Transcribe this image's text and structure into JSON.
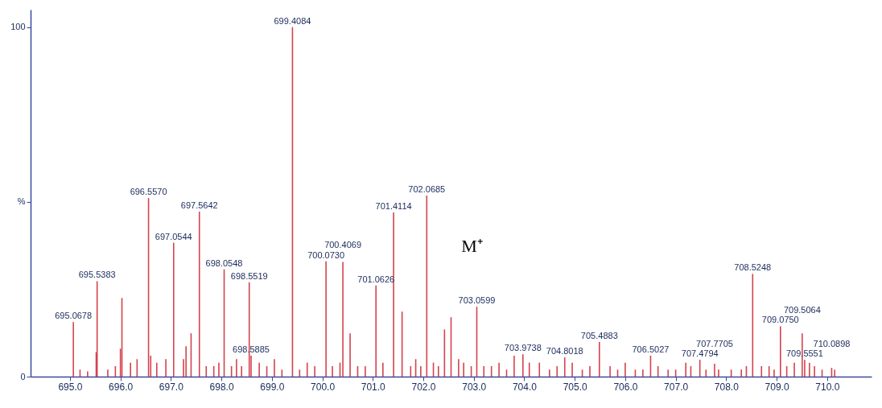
{
  "chart_data": {
    "type": "bar",
    "color": "#d4434c",
    "x": [
      695.0678,
      695.2,
      695.35,
      695.52,
      695.5383,
      695.75,
      695.9,
      696.0,
      696.03,
      696.2,
      696.33,
      696.557,
      696.6,
      696.72,
      696.9,
      697.0544,
      697.25,
      697.3,
      697.4,
      697.5642,
      697.7,
      697.85,
      697.95,
      698.0548,
      698.2,
      698.3,
      698.4,
      698.5519,
      698.5885,
      698.75,
      698.9,
      699.05,
      699.2,
      699.4084,
      699.55,
      699.7,
      699.85,
      700.073,
      700.2,
      700.35,
      700.4069,
      700.55,
      700.7,
      700.85,
      701.0626,
      701.2,
      701.4114,
      701.58,
      701.75,
      701.85,
      701.95,
      702.0685,
      702.2,
      702.3,
      702.42,
      702.55,
      702.7,
      702.8,
      702.95,
      703.0599,
      703.2,
      703.35,
      703.5,
      703.65,
      703.8,
      703.9738,
      704.1,
      704.3,
      704.5,
      704.65,
      704.8018,
      704.95,
      705.15,
      705.3,
      705.4883,
      705.7,
      705.85,
      706.0,
      706.2,
      706.35,
      706.5027,
      706.65,
      706.85,
      707.0,
      707.2,
      707.3,
      707.4794,
      707.6,
      707.7705,
      707.85,
      708.1,
      708.3,
      708.4,
      708.5248,
      708.7,
      708.85,
      708.95,
      709.075,
      709.2,
      709.35,
      709.5064,
      709.5551,
      709.65,
      709.75,
      709.9,
      710.0898,
      710.15
    ],
    "values": [
      15.6,
      2,
      1.5,
      7,
      27.3,
      2,
      3,
      8,
      22.5,
      4,
      5,
      51.1,
      6,
      4,
      5,
      38.3,
      5,
      8.7,
      12.4,
      47.2,
      3,
      3,
      4,
      30.7,
      3,
      5,
      3,
      27,
      6,
      4,
      3,
      5,
      2,
      100,
      2,
      4,
      3,
      33,
      3,
      4,
      32.8,
      12.4,
      3,
      3,
      26.1,
      4,
      47,
      18.6,
      3,
      5,
      3,
      51.8,
      4,
      3,
      13.5,
      17,
      5,
      4,
      3,
      20,
      3,
      3,
      4,
      2,
      6,
      6.4,
      4,
      4,
      2,
      3,
      5.5,
      4,
      2,
      3,
      9.9,
      3,
      2,
      4,
      2,
      2,
      6,
      3,
      2,
      2,
      4,
      3,
      4.8,
      2,
      3.7,
      2,
      2,
      2,
      3,
      29.4,
      3,
      3,
      2,
      14.4,
      3,
      4,
      12.4,
      4.8,
      4,
      3,
      2,
      2.5,
      2
    ],
    "xlim": [
      694.3,
      710.8
    ],
    "xticks": [
      {
        "value": 695,
        "label": "695.0"
      },
      {
        "value": 696,
        "label": "696.0"
      },
      {
        "value": 697,
        "label": "697.0"
      },
      {
        "value": 698,
        "label": "698.0"
      },
      {
        "value": 699,
        "label": "699.0"
      },
      {
        "value": 700,
        "label": "700.0"
      },
      {
        "value": 701,
        "label": "701.0"
      },
      {
        "value": 702,
        "label": "702.0"
      },
      {
        "value": 703,
        "label": "703.0"
      },
      {
        "value": 704,
        "label": "704.0"
      },
      {
        "value": 705,
        "label": "705.0"
      },
      {
        "value": 706,
        "label": "706.0"
      },
      {
        "value": 707,
        "label": "707.0"
      },
      {
        "value": 708,
        "label": "708.0"
      },
      {
        "value": 709,
        "label": "709.0"
      },
      {
        "value": 710,
        "label": "710.0"
      }
    ],
    "ylim": [
      0,
      105
    ],
    "yticks": [
      0,
      {
        "value": 50,
        "label": "%"
      },
      100
    ],
    "annotations": [
      {
        "text": "695.0678",
        "x": 695.0678,
        "y": 15.6
      },
      {
        "text": "695.5383",
        "x": 695.5383,
        "y": 27.3
      },
      {
        "text": "696.5570",
        "x": 696.557,
        "y": 51.1
      },
      {
        "text": "697.0544",
        "x": 697.0544,
        "y": 38.3
      },
      {
        "text": "697.5642",
        "x": 697.5642,
        "y": 47.2
      },
      {
        "text": "698.0548",
        "x": 698.0548,
        "y": 30.7
      },
      {
        "text": "698.5519",
        "x": 698.5519,
        "y": 27
      },
      {
        "text": "698.5885",
        "x": 698.5885,
        "y": 6
      },
      {
        "text": "699.4084",
        "x": 699.4084,
        "y": 100
      },
      {
        "text": "700.0730",
        "x": 700.073,
        "y": 33
      },
      {
        "text": "700.4069",
        "x": 700.4069,
        "y": 32.8
      },
      {
        "text": "701.0626",
        "x": 701.0626,
        "y": 26.1
      },
      {
        "text": "701.4114",
        "x": 701.4114,
        "y": 47
      },
      {
        "text": "702.0685",
        "x": 702.0685,
        "y": 51.8
      },
      {
        "text": "703.0599",
        "x": 703.0599,
        "y": 20
      },
      {
        "text": "703.9738",
        "x": 703.9738,
        "y": 6.4
      },
      {
        "text": "704.8018",
        "x": 704.8018,
        "y": 5.5
      },
      {
        "text": "705.4883",
        "x": 705.4883,
        "y": 9.9
      },
      {
        "text": "706.5027",
        "x": 706.5027,
        "y": 6
      },
      {
        "text": "707.4794",
        "x": 707.4794,
        "y": 4.8
      },
      {
        "text": "707.7705",
        "x": 707.7705,
        "y": 3.7
      },
      {
        "text": "708.5248",
        "x": 708.5248,
        "y": 29.4
      },
      {
        "text": "709.0750",
        "x": 709.075,
        "y": 14.4
      },
      {
        "text": "709.5064",
        "x": 709.5064,
        "y": 12.4
      },
      {
        "text": "709.5551",
        "x": 709.5551,
        "y": 4.8
      },
      {
        "text": "710.0898",
        "x": 710.0898,
        "y": 2.5
      },
      "M⁺"
    ]
  }
}
